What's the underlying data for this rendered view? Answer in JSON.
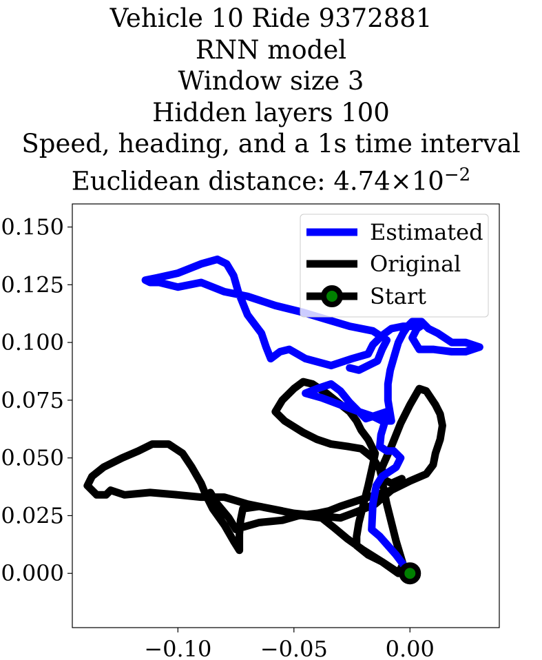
{
  "chart_data": {
    "type": "line",
    "title_lines": [
      "Vehicle 10 Ride 9372881",
      "RNN model",
      "Window size 3",
      "Hidden layers 100",
      "Speed, heading, and a 1s time interval"
    ],
    "title_distance_prefix": "Euclidean distance: 4.74",
    "title_distance_times": "×",
    "title_distance_base": "10",
    "title_distance_exponent": "−2",
    "xlabel": "",
    "ylabel": "",
    "xlim": [
      -0.1455,
      0.0385
    ],
    "ylim": [
      -0.0235,
      0.16
    ],
    "x_ticks": [
      {
        "value": -0.1,
        "label": "−0.10"
      },
      {
        "value": -0.05,
        "label": "−0.05"
      },
      {
        "value": 0.0,
        "label": "0.00"
      }
    ],
    "y_ticks": [
      {
        "value": 0.0,
        "label": "0.000"
      },
      {
        "value": 0.025,
        "label": "0.025"
      },
      {
        "value": 0.05,
        "label": "0.050"
      },
      {
        "value": 0.075,
        "label": "0.075"
      },
      {
        "value": 0.1,
        "label": "0.100"
      },
      {
        "value": 0.125,
        "label": "0.125"
      },
      {
        "value": 0.15,
        "label": "0.150"
      }
    ],
    "grid": false,
    "legend_position": "top-right",
    "colors": {
      "estimated": "#0000ff",
      "original": "#000000",
      "start_marker": "#008000"
    },
    "series": [
      {
        "name": "Estimated",
        "color": "#0000ff",
        "points": [
          [
            0.0,
            0.0
          ],
          [
            -0.006,
            0.008
          ],
          [
            -0.013,
            0.016
          ],
          [
            -0.0165,
            0.019
          ],
          [
            -0.016,
            0.03
          ],
          [
            -0.0145,
            0.038
          ],
          [
            -0.012,
            0.042
          ],
          [
            -0.006,
            0.046
          ],
          [
            -0.004,
            0.05
          ],
          [
            -0.007,
            0.053
          ],
          [
            -0.01,
            0.053
          ],
          [
            -0.013,
            0.055
          ],
          [
            -0.0125,
            0.06
          ],
          [
            -0.011,
            0.065
          ],
          [
            -0.01,
            0.07
          ],
          [
            -0.013,
            0.069
          ],
          [
            -0.019,
            0.067
          ],
          [
            -0.022,
            0.07
          ],
          [
            -0.026,
            0.074
          ],
          [
            -0.03,
            0.079
          ],
          [
            -0.034,
            0.082
          ],
          [
            -0.04,
            0.08
          ],
          [
            -0.045,
            0.078
          ],
          [
            -0.038,
            0.076
          ],
          [
            -0.03,
            0.073
          ],
          [
            -0.022,
            0.07
          ],
          [
            -0.016,
            0.068
          ],
          [
            -0.012,
            0.066
          ],
          [
            -0.008,
            0.066
          ],
          [
            -0.0095,
            0.075
          ],
          [
            -0.0095,
            0.082
          ],
          [
            -0.0085,
            0.088
          ],
          [
            -0.0065,
            0.095
          ],
          [
            -0.005,
            0.1
          ],
          [
            -0.003,
            0.104
          ],
          [
            -0.001,
            0.107
          ],
          [
            0.001,
            0.109
          ],
          [
            0.005,
            0.109
          ],
          [
            0.008,
            0.106
          ],
          [
            0.012,
            0.104
          ],
          [
            0.018,
            0.1
          ],
          [
            0.024,
            0.1
          ],
          [
            0.03,
            0.098
          ],
          [
            0.024,
            0.096
          ],
          [
            0.018,
            0.096
          ],
          [
            0.01,
            0.097
          ],
          [
            0.004,
            0.097
          ],
          [
            0.001,
            0.102
          ],
          [
            0.003,
            0.106
          ],
          [
            0.006,
            0.108
          ],
          [
            0.003,
            0.107
          ],
          [
            -0.003,
            0.107
          ],
          [
            -0.008,
            0.106
          ],
          [
            -0.012,
            0.103
          ],
          [
            -0.016,
            0.099
          ],
          [
            -0.018,
            0.095
          ],
          [
            -0.025,
            0.093
          ],
          [
            -0.034,
            0.09
          ],
          [
            -0.045,
            0.093
          ],
          [
            -0.052,
            0.097
          ],
          [
            -0.056,
            0.096
          ],
          [
            -0.06,
            0.093
          ],
          [
            -0.062,
            0.098
          ],
          [
            -0.064,
            0.104
          ],
          [
            -0.07,
            0.112
          ],
          [
            -0.074,
            0.122
          ],
          [
            -0.076,
            0.129
          ],
          [
            -0.079,
            0.134
          ],
          [
            -0.083,
            0.136
          ],
          [
            -0.09,
            0.134
          ],
          [
            -0.1,
            0.13
          ],
          [
            -0.109,
            0.128
          ],
          [
            -0.114,
            0.127
          ],
          [
            -0.112,
            0.126
          ],
          [
            -0.108,
            0.126
          ],
          [
            -0.1,
            0.124
          ],
          [
            -0.09,
            0.126
          ],
          [
            -0.08,
            0.122
          ],
          [
            -0.07,
            0.12
          ],
          [
            -0.058,
            0.116
          ],
          [
            -0.046,
            0.113
          ],
          [
            -0.036,
            0.11
          ],
          [
            -0.026,
            0.107
          ],
          [
            -0.016,
            0.105
          ],
          [
            -0.01,
            0.101
          ],
          [
            -0.012,
            0.097
          ],
          [
            -0.014,
            0.092
          ],
          [
            -0.018,
            0.09
          ],
          [
            -0.022,
            0.088
          ],
          [
            -0.026,
            0.089
          ]
        ]
      },
      {
        "name": "Original",
        "color": "#000000",
        "points": [
          [
            0.0,
            0.0
          ],
          [
            -0.006,
            0.001
          ],
          [
            -0.012,
            0.005
          ],
          [
            -0.02,
            0.01
          ],
          [
            -0.027,
            0.015
          ],
          [
            -0.033,
            0.02
          ],
          [
            -0.038,
            0.024
          ],
          [
            -0.046,
            0.025
          ],
          [
            -0.055,
            0.027
          ],
          [
            -0.065,
            0.029
          ],
          [
            -0.072,
            0.028
          ],
          [
            -0.073,
            0.023
          ],
          [
            -0.0735,
            0.017
          ],
          [
            -0.0735,
            0.01
          ],
          [
            -0.076,
            0.014
          ],
          [
            -0.08,
            0.021
          ],
          [
            -0.085,
            0.028
          ],
          [
            -0.088,
            0.034
          ],
          [
            -0.09,
            0.039
          ],
          [
            -0.094,
            0.046
          ],
          [
            -0.098,
            0.052
          ],
          [
            -0.104,
            0.056
          ],
          [
            -0.111,
            0.056
          ],
          [
            -0.117,
            0.053
          ],
          [
            -0.124,
            0.05
          ],
          [
            -0.132,
            0.046
          ],
          [
            -0.137,
            0.042
          ],
          [
            -0.139,
            0.038
          ],
          [
            -0.135,
            0.034
          ],
          [
            -0.131,
            0.034
          ],
          [
            -0.129,
            0.036
          ],
          [
            -0.123,
            0.034
          ],
          [
            -0.112,
            0.035
          ],
          [
            -0.1,
            0.034
          ],
          [
            -0.09,
            0.033
          ],
          [
            -0.08,
            0.033
          ],
          [
            -0.07,
            0.03
          ],
          [
            -0.06,
            0.028
          ],
          [
            -0.05,
            0.026
          ],
          [
            -0.04,
            0.025
          ],
          [
            -0.03,
            0.024
          ],
          [
            -0.022,
            0.027
          ],
          [
            -0.015,
            0.03
          ],
          [
            -0.008,
            0.036
          ],
          [
            -0.0035,
            0.041
          ],
          [
            -0.008,
            0.039
          ],
          [
            -0.012,
            0.041
          ],
          [
            -0.013,
            0.045
          ],
          [
            -0.016,
            0.05
          ],
          [
            -0.021,
            0.054
          ],
          [
            -0.027,
            0.055
          ],
          [
            -0.034,
            0.056
          ],
          [
            -0.04,
            0.058
          ],
          [
            -0.046,
            0.061
          ],
          [
            -0.054,
            0.066
          ],
          [
            -0.058,
            0.07
          ],
          [
            -0.055,
            0.075
          ],
          [
            -0.05,
            0.08
          ],
          [
            -0.046,
            0.083
          ],
          [
            -0.042,
            0.082
          ],
          [
            -0.036,
            0.078
          ],
          [
            -0.031,
            0.074
          ],
          [
            -0.026,
            0.07
          ],
          [
            -0.023,
            0.066
          ],
          [
            -0.021,
            0.062
          ],
          [
            -0.018,
            0.058
          ],
          [
            -0.015,
            0.052
          ],
          [
            -0.016,
            0.047
          ],
          [
            -0.018,
            0.038
          ],
          [
            -0.02,
            0.03
          ],
          [
            -0.022,
            0.022
          ],
          [
            -0.023,
            0.016
          ],
          [
            -0.023,
            0.012
          ],
          [
            -0.018,
            0.008
          ],
          [
            -0.012,
            0.005
          ],
          [
            -0.005,
            0.0
          ],
          [
            -0.003,
            0.004
          ],
          [
            -0.006,
            0.014
          ],
          [
            -0.01,
            0.03
          ],
          [
            -0.012,
            0.04
          ],
          [
            -0.012,
            0.046
          ],
          [
            -0.008,
            0.055
          ],
          [
            -0.004,
            0.065
          ],
          [
            0.0,
            0.073
          ],
          [
            0.004,
            0.08
          ],
          [
            0.007,
            0.079
          ],
          [
            0.009,
            0.076
          ],
          [
            0.011,
            0.073
          ],
          [
            0.013,
            0.069
          ],
          [
            0.014,
            0.064
          ],
          [
            0.013,
            0.058
          ],
          [
            0.011,
            0.052
          ],
          [
            0.01,
            0.047
          ],
          [
            0.007,
            0.043
          ],
          [
            0.0,
            0.04
          ],
          [
            -0.008,
            0.036
          ],
          [
            -0.018,
            0.033
          ],
          [
            -0.03,
            0.029
          ],
          [
            -0.035,
            0.027
          ],
          [
            -0.04,
            0.026
          ],
          [
            -0.048,
            0.025
          ],
          [
            -0.055,
            0.023
          ],
          [
            -0.065,
            0.022
          ],
          [
            -0.072,
            0.02
          ],
          [
            -0.075,
            0.019
          ],
          [
            -0.078,
            0.024
          ],
          [
            -0.083,
            0.03
          ],
          [
            -0.086,
            0.035
          ]
        ]
      }
    ],
    "start_point": {
      "name": "Start",
      "x": 0.0,
      "y": 0.0
    }
  }
}
